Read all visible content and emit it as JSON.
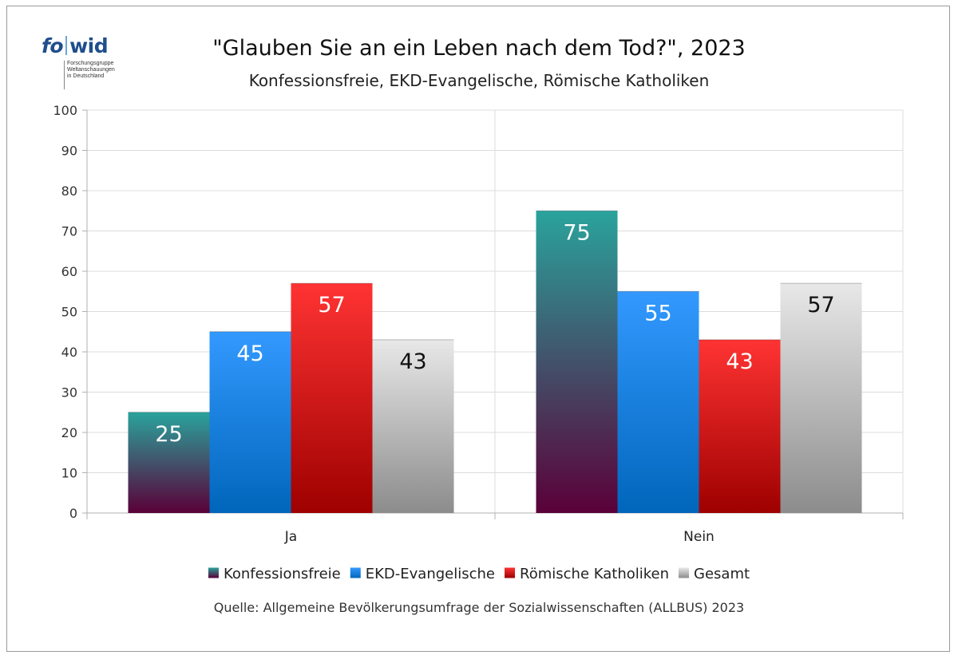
{
  "logo": {
    "word_a": "fo",
    "word_b": "wid",
    "sub_lines": [
      "Forschungsgruppe",
      "Weltanschauungen",
      "in Deutschland"
    ]
  },
  "source": "Quelle: Allgemeine Bevölkerungsumfrage der Sozialwissenschaften (ALLBUS) 2023",
  "chart_data": {
    "type": "bar",
    "title": "\"Glauben Sie an ein Leben nach dem Tod?\", 2023",
    "subtitle": "Konfessionsfreie, EKD-Evangelische, Römische Katholiken",
    "xlabel": "",
    "ylabel": "",
    "categories": [
      "Ja",
      "Nein"
    ],
    "ylim": [
      0,
      100
    ],
    "yticks": [
      0,
      10,
      20,
      30,
      40,
      50,
      60,
      70,
      80,
      90,
      100
    ],
    "grid": true,
    "legend_position": "bottom",
    "series": [
      {
        "name": "Konfessionsfreie",
        "values": [
          25,
          75
        ],
        "color_top": "#2aa39c",
        "color_bottom": "#5a0038",
        "label_color": "#ffffff"
      },
      {
        "name": "EKD-Evangelische",
        "values": [
          45,
          55
        ],
        "color_top": "#3399ff",
        "color_bottom": "#0066bb",
        "label_color": "#ffffff"
      },
      {
        "name": "Römische Katholiken",
        "values": [
          57,
          43
        ],
        "color_top": "#ff3333",
        "color_bottom": "#9e0000",
        "label_color": "#ffffff"
      },
      {
        "name": "Gesamt",
        "values": [
          43,
          57
        ],
        "color_top": "#e8e8e8",
        "color_bottom": "#8c8c8c",
        "label_color": "#111111"
      }
    ]
  }
}
